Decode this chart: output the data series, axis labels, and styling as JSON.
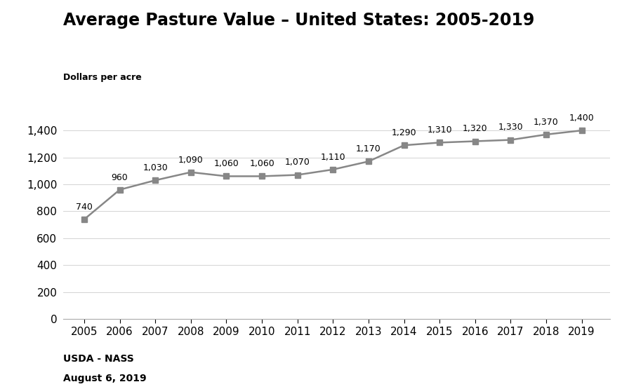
{
  "title": "Average Pasture Value – United States: 2005-2019",
  "ylabel": "Dollars per acre",
  "years": [
    2005,
    2006,
    2007,
    2008,
    2009,
    2010,
    2011,
    2012,
    2013,
    2014,
    2015,
    2016,
    2017,
    2018,
    2019
  ],
  "values": [
    740,
    960,
    1030,
    1090,
    1060,
    1060,
    1070,
    1110,
    1170,
    1290,
    1310,
    1320,
    1330,
    1370,
    1400
  ],
  "line_color": "#878787",
  "marker_color": "#878787",
  "ylim": [
    0,
    1560
  ],
  "yticks": [
    0,
    200,
    400,
    600,
    800,
    1000,
    1200,
    1400
  ],
  "footnote_line1": "USDA - NASS",
  "footnote_line2": "August 6, 2019",
  "background_color": "#ffffff",
  "title_fontsize": 17,
  "axis_label_fontsize": 9,
  "tick_fontsize": 11,
  "annotation_fontsize": 9,
  "footnote_fontsize": 10
}
